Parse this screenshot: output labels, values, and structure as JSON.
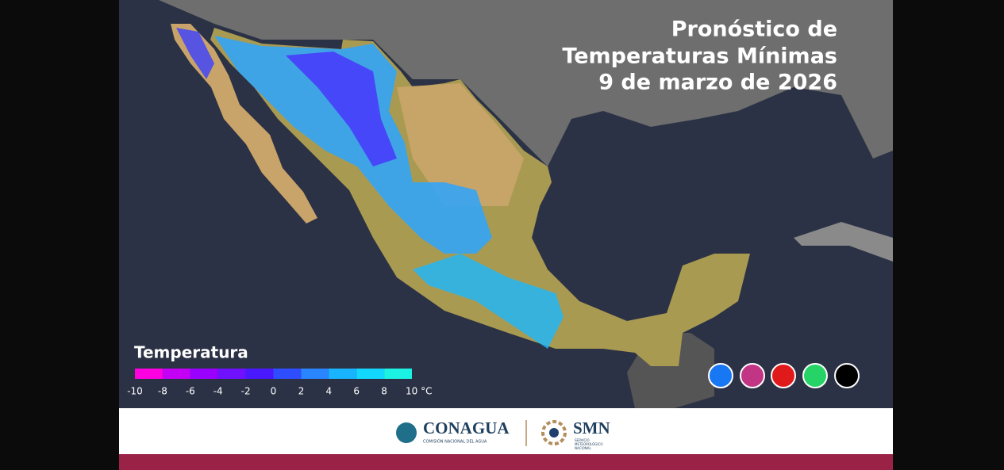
{
  "title": {
    "line1": "Pronóstico de",
    "line2": "Temperaturas Mínimas",
    "line3": "9 de marzo de 2026"
  },
  "legend": {
    "title": "Temperatura",
    "colors": [
      "#ff00e0",
      "#c400f5",
      "#9a00ff",
      "#6f10ff",
      "#4a18ff",
      "#2e4dff",
      "#2a86ff",
      "#18b4ff",
      "#12d8ff",
      "#1cf2e4"
    ],
    "ticks": [
      "-10",
      "-8",
      "-6",
      "-4",
      "-2",
      "0",
      "2",
      "4",
      "6",
      "8",
      "10 °C"
    ]
  },
  "footer": {
    "conagua": "CONAGUA",
    "conagua_sub": "COMISIÓN NACIONAL DEL AGUA",
    "smn": "SMN",
    "smn_sub1": "SERVICIO",
    "smn_sub2": "METEOROLÓGICO",
    "smn_sub3": "NACIONAL"
  }
}
